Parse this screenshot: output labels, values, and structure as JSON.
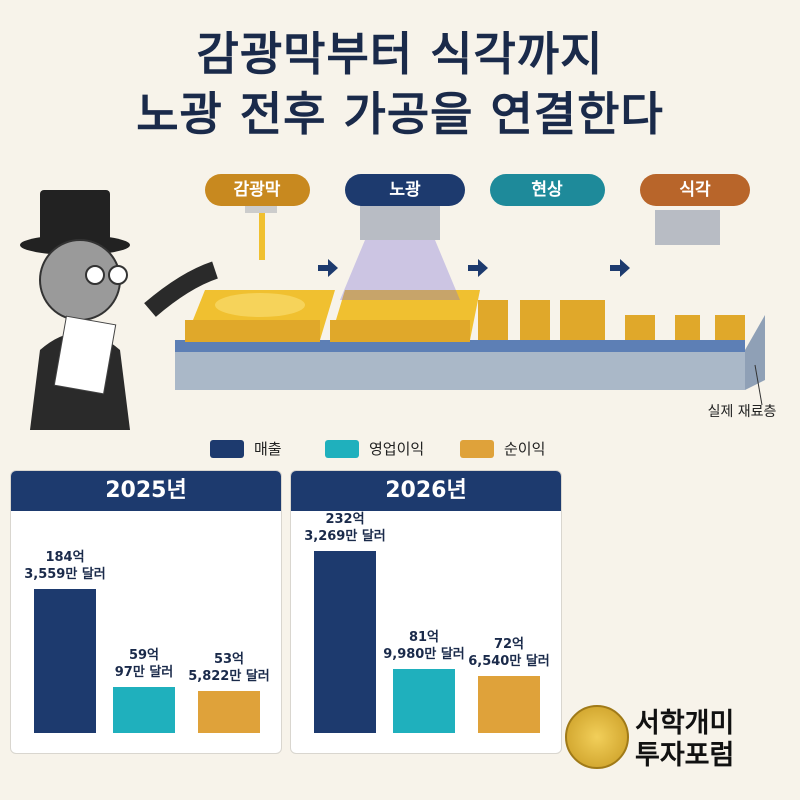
{
  "header": {
    "title": [
      "감광막부터 식각까지",
      "노광 전후 가공을 연결한다"
    ]
  },
  "process": {
    "steps": [
      "감광막",
      "노광",
      "현상",
      "식각"
    ],
    "layer_label": "실제 재료층"
  },
  "logo": {
    "name": [
      "서학개미",
      "투자포럼"
    ]
  },
  "chart_data": [
    {
      "type": "bar",
      "title": "2025년",
      "series": [
        {
          "name": "매출",
          "color": "#1d3a6e",
          "values": [
            1843559
          ],
          "value_labels": [
            "184억\n3,559만 달러"
          ]
        },
        {
          "name": "영업이익",
          "color": "#1fb0bd",
          "values": [
            590097
          ],
          "value_labels": [
            "59억\n97만 달러"
          ]
        },
        {
          "name": "순이익",
          "color": "#dfa23a",
          "values": [
            535822
          ],
          "value_labels": [
            "53억\n5,822만 달러"
          ]
        }
      ]
    },
    {
      "type": "bar",
      "title": "2026년",
      "series": [
        {
          "name": "매출",
          "color": "#1d3a6e",
          "values": [
            2323269
          ],
          "value_labels": [
            "232억\n3,269만 달러"
          ]
        },
        {
          "name": "영업이익",
          "color": "#1fb0bd",
          "values": [
            819980
          ],
          "value_labels": [
            "81억\n9,980만 달러"
          ]
        },
        {
          "name": "순이익",
          "color": "#dfa23a",
          "values": [
            726540
          ],
          "value_labels": [
            "72억\n6,540만 달러"
          ]
        }
      ]
    }
  ]
}
